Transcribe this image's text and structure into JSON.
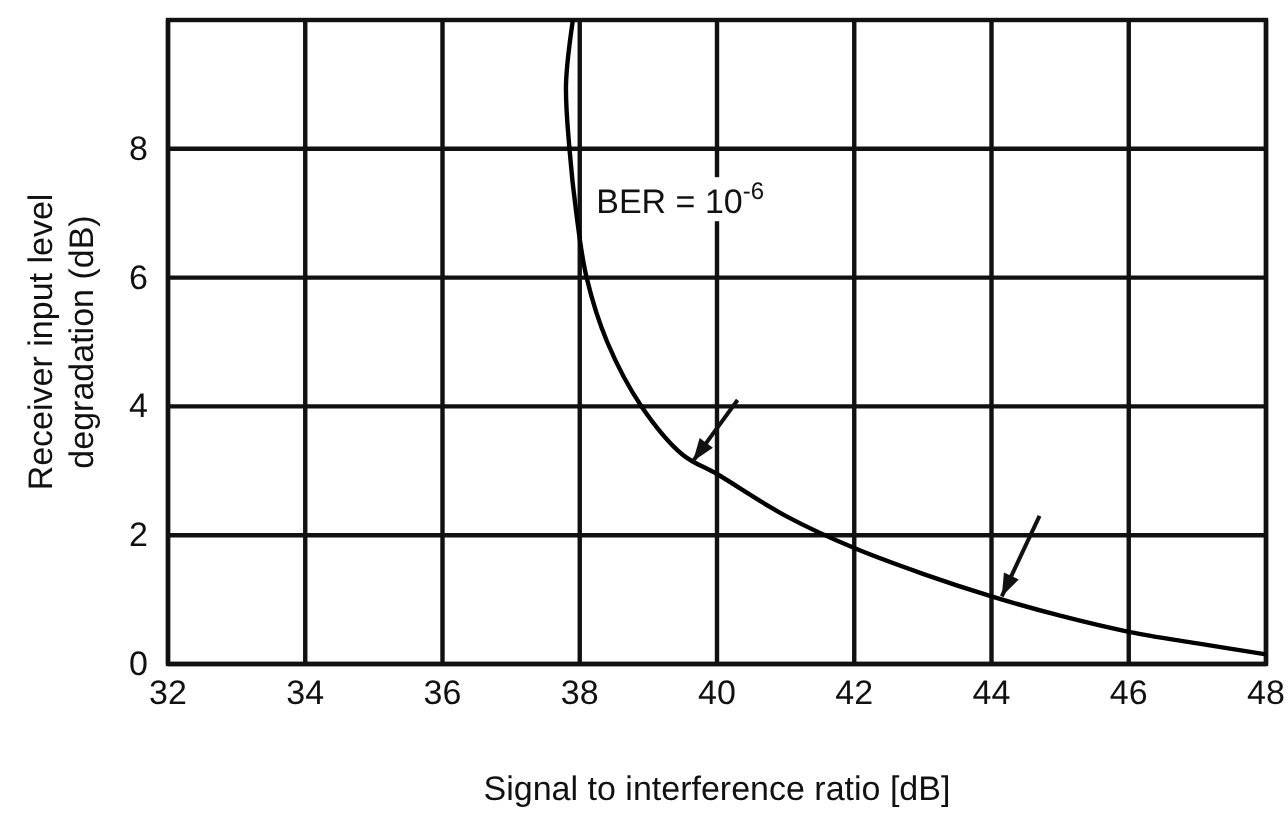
{
  "chart_data": {
    "type": "line",
    "xlabel": "Signal to interference ratio [dB]",
    "ylabel": "Receiver input level degradation (dB)",
    "x": [
      37.9,
      37.8,
      37.85,
      37.95,
      38.1,
      38.4,
      38.9,
      39.5,
      40,
      41,
      42,
      43,
      44,
      45,
      46,
      47,
      48
    ],
    "series": [
      {
        "color": "#000000",
        "values": [
          10,
          9,
          8,
          7,
          6,
          5,
          4,
          3.25,
          2.95,
          2.3,
          1.8,
          1.4,
          1.05,
          0.75,
          0.5,
          0.32,
          0.15
        ]
      }
    ],
    "xlim": [
      32,
      48
    ],
    "xticks": [
      32,
      34,
      36,
      38,
      40,
      42,
      44,
      46,
      48
    ],
    "ylim": [
      0,
      10
    ],
    "yticks": [
      0,
      2,
      4,
      6,
      8
    ],
    "grid": true,
    "marker": "none",
    "line_style": "solid",
    "annotations": [
      "BER = 10$^{-6}$"
    ]
  }
}
